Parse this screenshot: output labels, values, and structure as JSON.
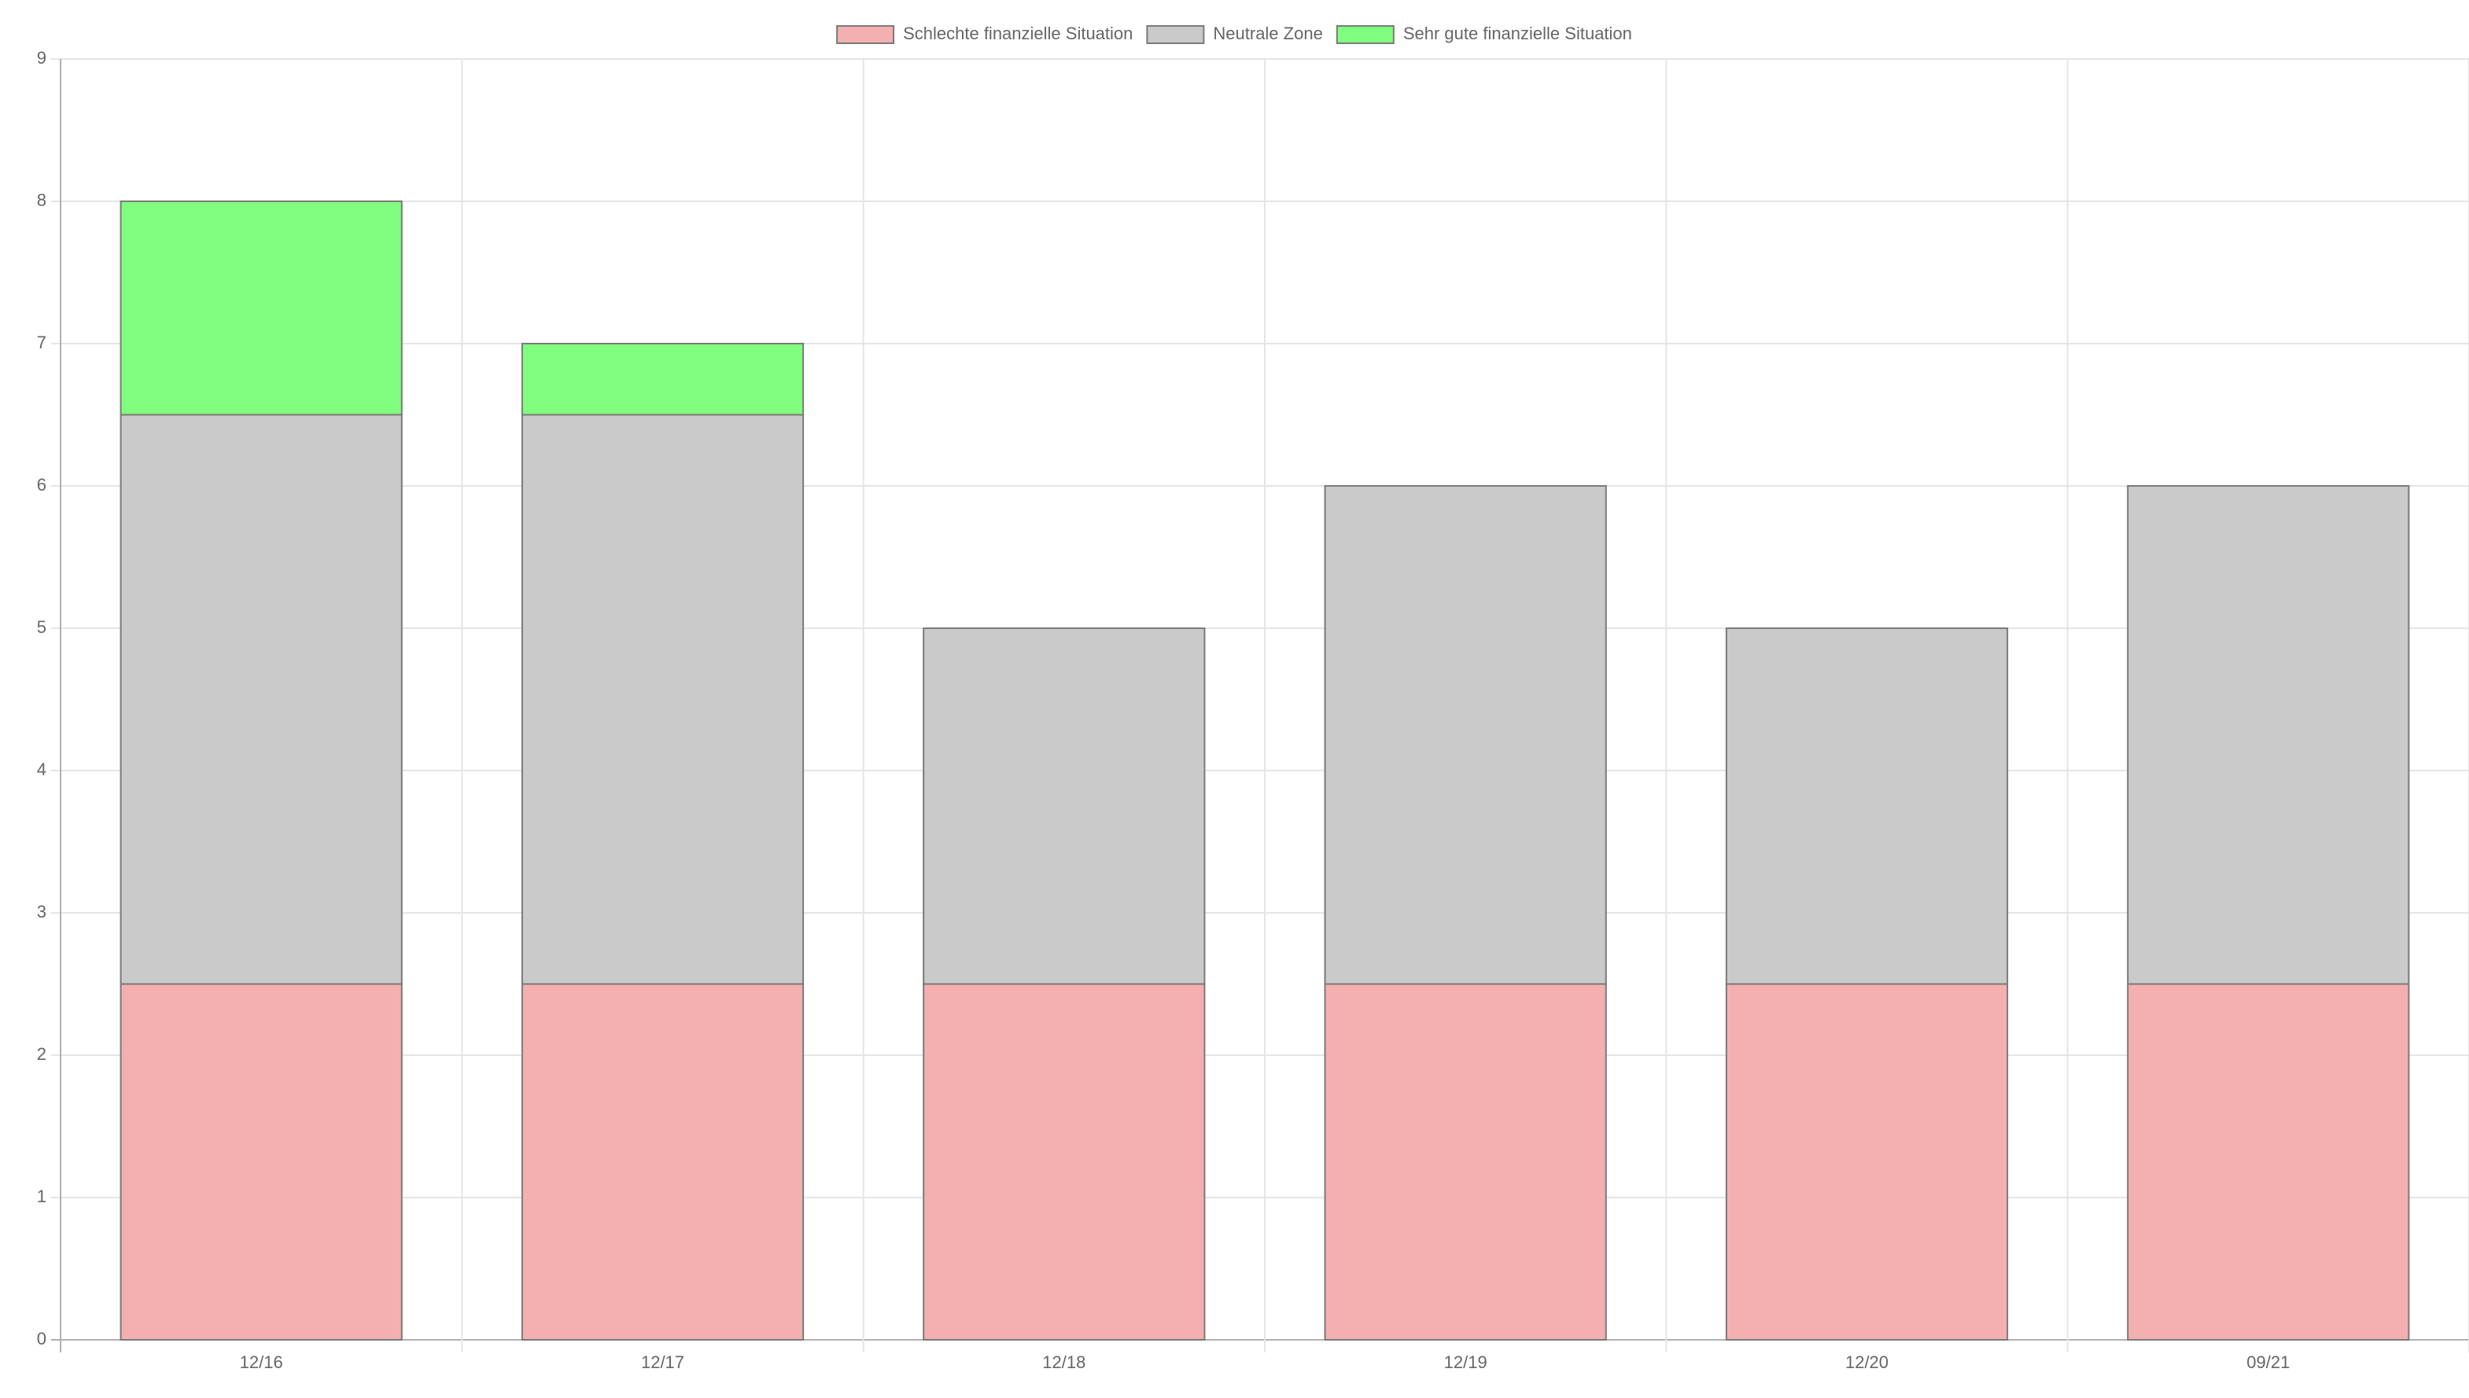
{
  "chart_data": {
    "type": "bar",
    "stacked": true,
    "categories": [
      "12/16",
      "12/17",
      "12/18",
      "12/19",
      "12/20",
      "09/21"
    ],
    "series": [
      {
        "name": "Schlechte finanzielle Situation",
        "color": "#f4b0b0",
        "values": [
          2.5,
          2.5,
          2.5,
          2.5,
          2.5,
          2.5
        ]
      },
      {
        "name": "Neutrale Zone",
        "color": "#cacaca",
        "values": [
          4,
          4,
          2.5,
          3.5,
          2.5,
          3.5
        ]
      },
      {
        "name": "Sehr gute finanzielle Situation",
        "color": "#80fe7e",
        "values": [
          1.5,
          0.5,
          0,
          0,
          0,
          0
        ]
      }
    ],
    "ylim": [
      0,
      9
    ],
    "yticks": [
      "0",
      "1",
      "2",
      "3",
      "4",
      "5",
      "6",
      "7",
      "8",
      "9"
    ],
    "grid": true,
    "legend": "top-center",
    "bar_border_color": "#7a7a7a",
    "grid_color": "#e5e5e5",
    "axis_color": "#b0b0b0",
    "text_color": "#666666"
  }
}
